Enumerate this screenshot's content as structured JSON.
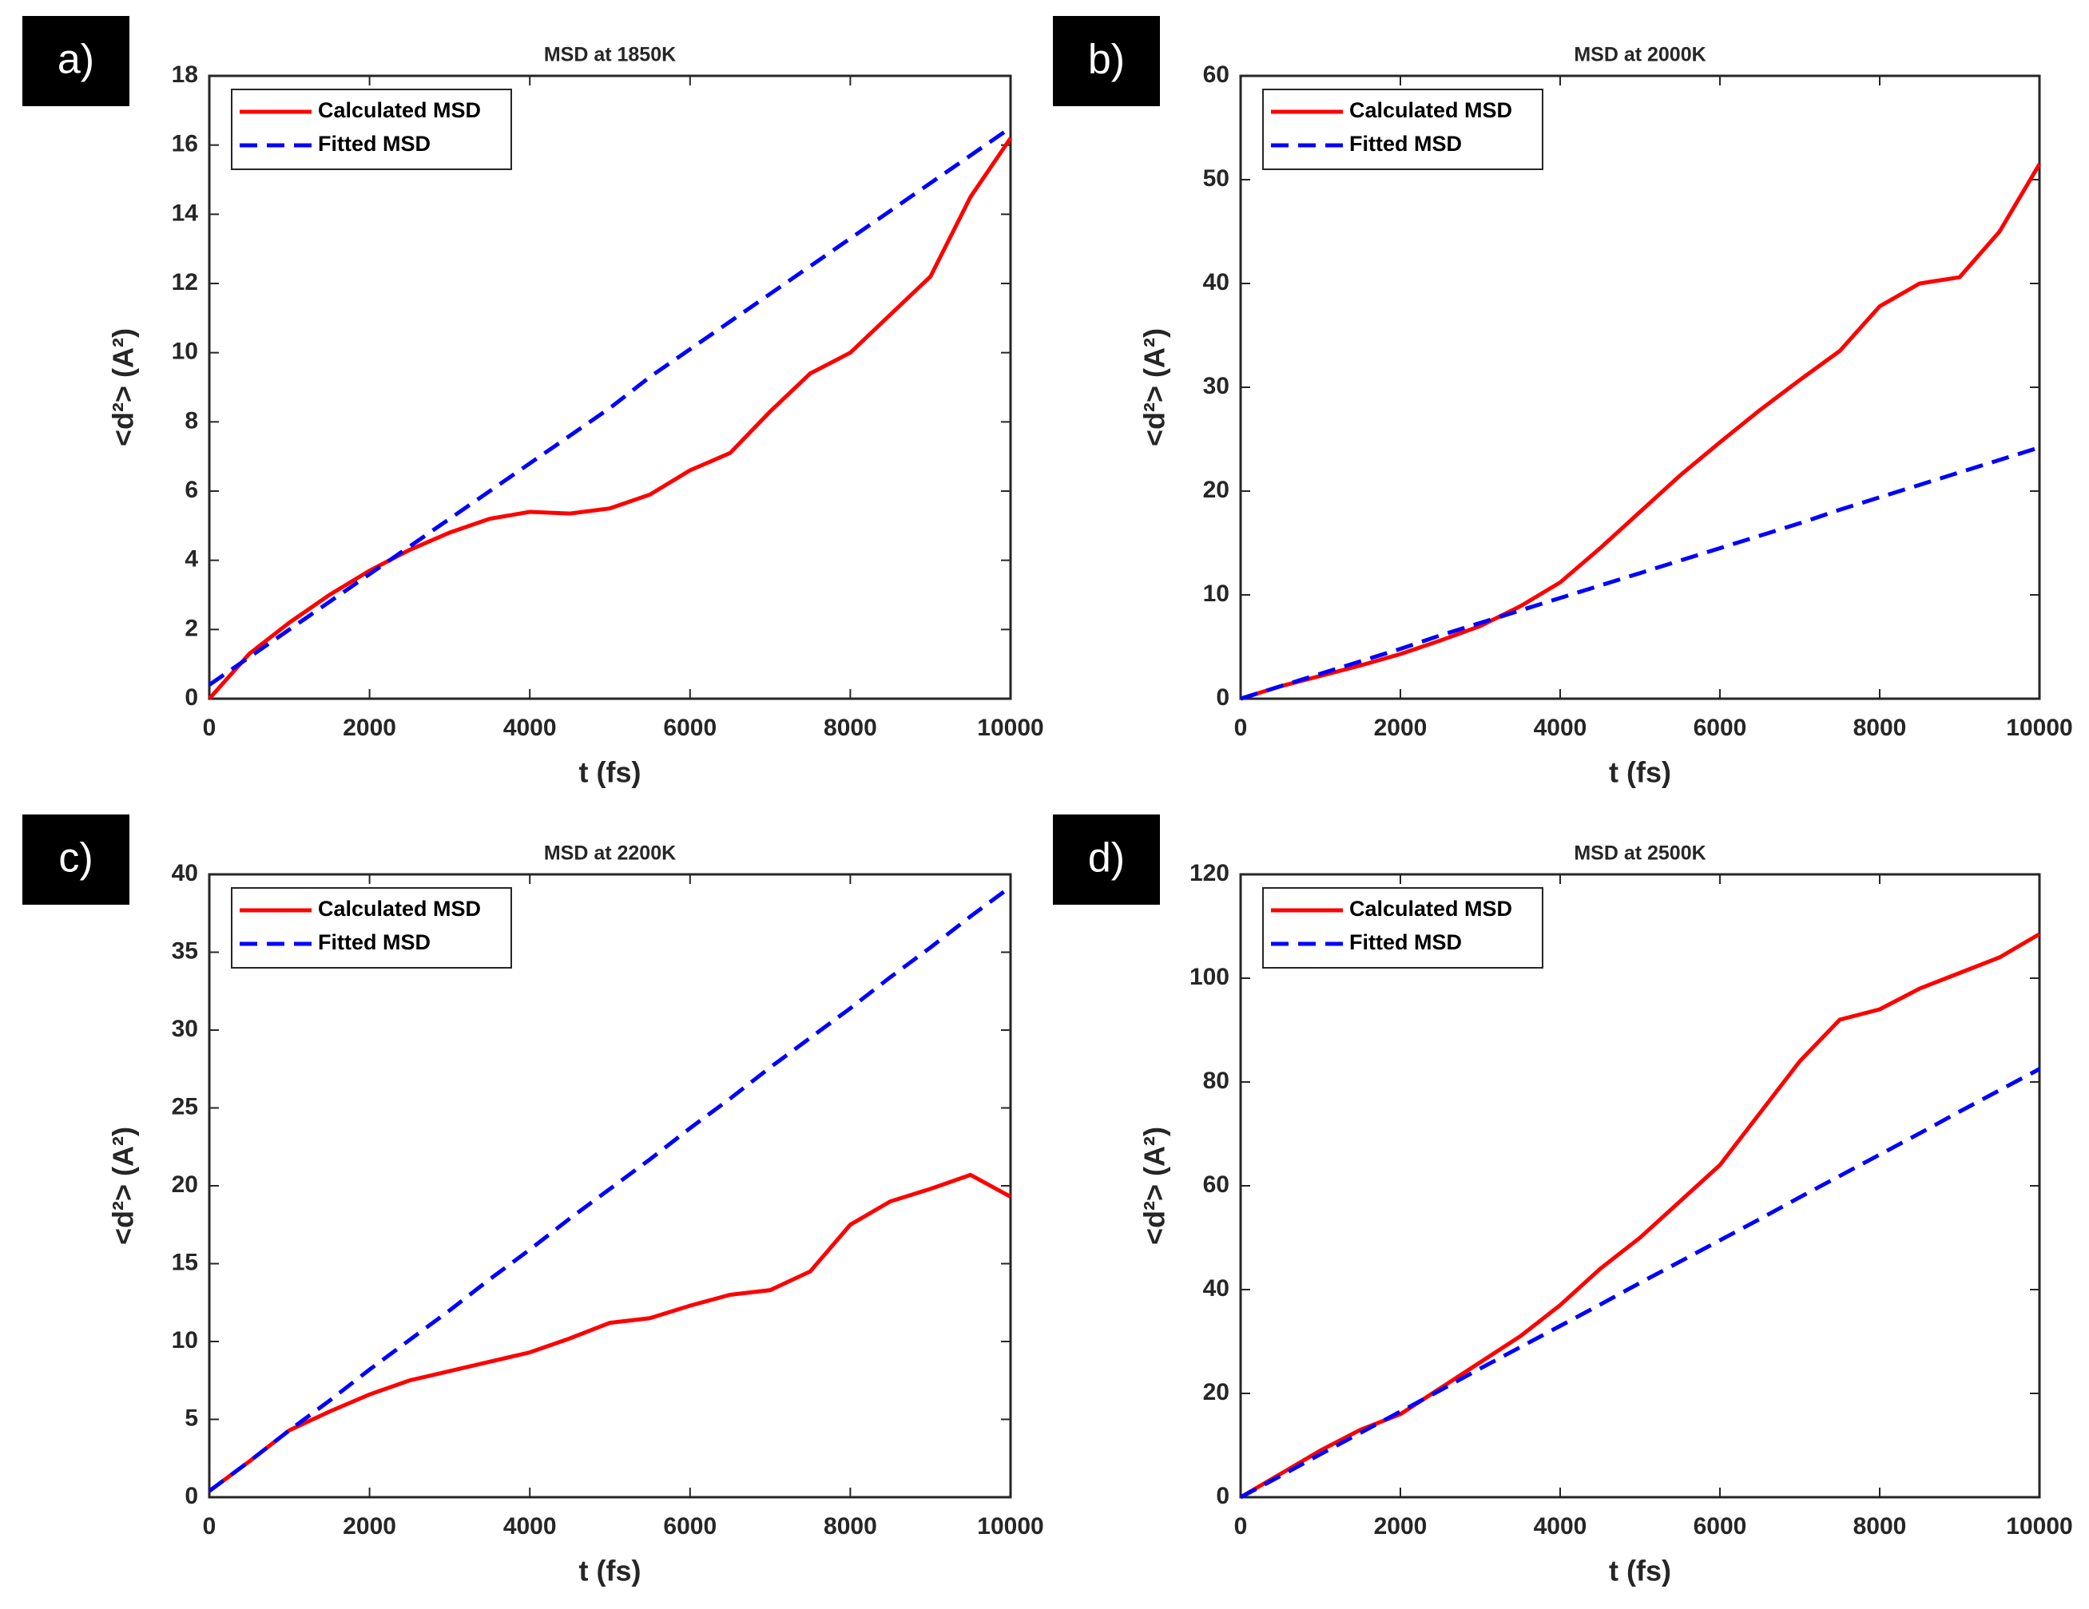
{
  "chart_data": [
    {
      "type": "line",
      "panel_label": "a)",
      "title": "MSD at 1850K",
      "x_label": "t (fs)",
      "y_label": "<d²> (A²)",
      "x": [
        0,
        500,
        1000,
        1500,
        2000,
        2500,
        3000,
        3500,
        4000,
        4500,
        5000,
        5500,
        6000,
        6500,
        7000,
        7500,
        8000,
        8500,
        9000,
        9500,
        10000
      ],
      "series": [
        {
          "name": "Calculated MSD",
          "color": "#ff0000",
          "style": "solid",
          "values": [
            0,
            1.3,
            2.2,
            3.0,
            3.7,
            4.3,
            4.8,
            5.2,
            5.4,
            5.35,
            5.5,
            5.9,
            6.6,
            7.1,
            8.3,
            9.4,
            10.0,
            11.1,
            12.2,
            14.5,
            16.2
          ]
        },
        {
          "name": "Fitted MSD",
          "color": "#0000ff",
          "style": "dashed",
          "values": [
            0.4,
            1.2,
            2.0,
            2.8,
            3.6,
            4.4,
            5.2,
            6.0,
            6.8,
            7.6,
            8.4,
            9.3,
            10.1,
            10.9,
            11.7,
            12.5,
            13.3,
            14.1,
            14.9,
            15.7,
            16.5
          ]
        }
      ],
      "xlim": [
        0,
        10000
      ],
      "ylim": [
        0,
        18
      ],
      "xticks": [
        0,
        2000,
        4000,
        6000,
        8000,
        10000
      ],
      "yticks": [
        0,
        2,
        4,
        6,
        8,
        10,
        12,
        14,
        16,
        18
      ],
      "legend": "upper left"
    },
    {
      "type": "line",
      "panel_label": "b)",
      "title": "MSD at 2000K",
      "x_label": "t (fs)",
      "y_label": "<d²> (A²)",
      "x": [
        0,
        500,
        1000,
        1500,
        2000,
        2500,
        3000,
        3500,
        4000,
        4500,
        5000,
        5500,
        6000,
        6500,
        7000,
        7500,
        8000,
        8500,
        9000,
        9500,
        10000
      ],
      "series": [
        {
          "name": "Calculated MSD",
          "color": "#ff0000",
          "style": "solid",
          "values": [
            0,
            1.2,
            2.2,
            3.2,
            4.3,
            5.6,
            7.0,
            8.9,
            11.2,
            14.5,
            18,
            21.5,
            24.7,
            27.8,
            30.7,
            33.5,
            37.8,
            40.0,
            40.6,
            45,
            51.5
          ]
        },
        {
          "name": "Fitted MSD",
          "color": "#0000ff",
          "style": "dashed",
          "values": [
            0,
            1.2,
            2.4,
            3.6,
            4.8,
            6.1,
            7.3,
            8.5,
            9.7,
            10.9,
            12.1,
            13.3,
            14.5,
            15.7,
            16.9,
            18.2,
            19.4,
            20.6,
            21.8,
            23.0,
            24.2
          ]
        }
      ],
      "xlim": [
        0,
        10000
      ],
      "ylim": [
        0,
        60
      ],
      "xticks": [
        0,
        2000,
        4000,
        6000,
        8000,
        10000
      ],
      "yticks": [
        0,
        10,
        20,
        30,
        40,
        50,
        60
      ],
      "legend": "upper left"
    },
    {
      "type": "line",
      "panel_label": "c)",
      "title": "MSD at 2200K",
      "x_label": "t (fs)",
      "y_label": "<d²> (A²)",
      "x": [
        0,
        500,
        1000,
        1500,
        2000,
        2500,
        3000,
        3500,
        4000,
        4500,
        5000,
        5500,
        6000,
        6500,
        7000,
        7500,
        8000,
        8500,
        9000,
        9500,
        10000
      ],
      "series": [
        {
          "name": "Calculated MSD",
          "color": "#ff0000",
          "style": "solid",
          "values": [
            0.4,
            2.3,
            4.3,
            5.5,
            6.6,
            7.5,
            8.1,
            8.7,
            9.3,
            10.2,
            11.2,
            11.5,
            12.3,
            13.0,
            13.3,
            14.5,
            17.5,
            19.0,
            19.8,
            20.7,
            19.3
          ]
        },
        {
          "name": "Fitted MSD",
          "color": "#0000ff",
          "style": "dashed",
          "values": [
            0.4,
            2.3,
            4.3,
            6.2,
            8.2,
            10.1,
            12.0,
            14.0,
            15.9,
            17.9,
            19.8,
            21.7,
            23.7,
            25.6,
            27.6,
            29.5,
            31.4,
            33.4,
            35.3,
            37.3,
            39.2
          ]
        }
      ],
      "xlim": [
        0,
        10000
      ],
      "ylim": [
        0,
        40
      ],
      "xticks": [
        0,
        2000,
        4000,
        6000,
        8000,
        10000
      ],
      "yticks": [
        0,
        5,
        10,
        15,
        20,
        25,
        30,
        35,
        40
      ],
      "legend": "upper left"
    },
    {
      "type": "line",
      "panel_label": "d)",
      "title": "MSD at 2500K",
      "x_label": "t (fs)",
      "y_label": "<d²> (A²)",
      "x": [
        0,
        500,
        1000,
        1500,
        2000,
        2500,
        3000,
        3500,
        4000,
        4500,
        5000,
        5500,
        6000,
        6500,
        7000,
        7500,
        8000,
        8500,
        9000,
        9500,
        10000
      ],
      "series": [
        {
          "name": "Calculated MSD",
          "color": "#ff0000",
          "style": "solid",
          "values": [
            0,
            4.5,
            9,
            13,
            16,
            21,
            26,
            31,
            37,
            44,
            50,
            57,
            64,
            74,
            84,
            92,
            94,
            98,
            101,
            104,
            108.5
          ]
        },
        {
          "name": "Fitted MSD",
          "color": "#0000ff",
          "style": "dashed",
          "values": [
            0,
            4.1,
            8.3,
            12.4,
            16.5,
            20.6,
            24.8,
            28.9,
            33.0,
            37.1,
            41.3,
            45.4,
            49.5,
            53.6,
            57.8,
            61.9,
            66.0,
            70.1,
            74.3,
            78.4,
            82.5
          ]
        }
      ],
      "xlim": [
        0,
        10000
      ],
      "ylim": [
        0,
        120
      ],
      "xticks": [
        0,
        2000,
        4000,
        6000,
        8000,
        10000
      ],
      "yticks": [
        0,
        20,
        40,
        60,
        80,
        100,
        120
      ],
      "legend": "upper left"
    }
  ]
}
